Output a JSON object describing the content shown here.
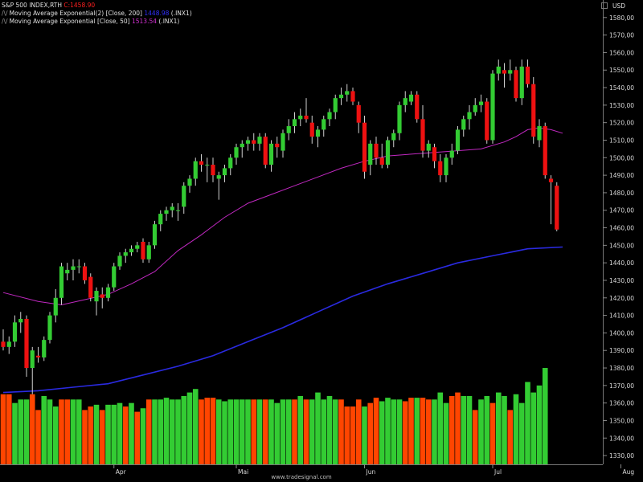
{
  "header": {
    "symbol_label": "S&P 500 INDEX,RTH",
    "close_value": "C:1458.90",
    "indicator_prefix": "/\\/",
    "indicators": [
      {
        "label": "Moving Average Exponential(2) [Close, 200]",
        "value": "1448.98",
        "source": "(.INX1)",
        "color": "#3030ff"
      },
      {
        "label": "Moving Average Exponential [Close, 50]",
        "value": "1513.54",
        "source": "(.INX1)",
        "color": "#d030d0"
      }
    ],
    "currency": "USD"
  },
  "footer": {
    "credit": "www.tradesignal.com"
  },
  "chart_data": {
    "type": "candlestick",
    "x_ticks": [
      {
        "label": "Apr",
        "index": 19
      },
      {
        "label": "Mai",
        "index": 40
      },
      {
        "label": "Jun",
        "index": 62
      },
      {
        "label": "Jul",
        "index": 84
      },
      {
        "label": "Aug",
        "index": 106
      }
    ],
    "ylim": [
      1325,
      1590
    ],
    "y_ticks": [
      1330,
      1340,
      1350,
      1360,
      1370,
      1380,
      1390,
      1400,
      1410,
      1420,
      1430,
      1440,
      1450,
      1460,
      1470,
      1480,
      1490,
      1500,
      1510,
      1520,
      1530,
      1540,
      1550,
      1560,
      1570,
      1580
    ],
    "y_tick_labels": [
      "1330,00",
      "1340,00",
      "1350,00",
      "1360,00",
      "1370,00",
      "1380,00",
      "1390,00",
      "1400,00",
      "1410,00",
      "1420,00",
      "1430,00",
      "1440,00",
      "1450,00",
      "1460,00",
      "1470,00",
      "1480,00",
      "1490,00",
      "1500,00",
      "1510,00",
      "1520,00",
      "1530,00",
      "1540,00",
      "1550,00",
      "1560,00",
      "1570,00",
      "1580,00"
    ],
    "candles": [
      [
        1395,
        1402,
        1390,
        1392
      ],
      [
        1392,
        1398,
        1388,
        1395
      ],
      [
        1395,
        1410,
        1392,
        1406
      ],
      [
        1406,
        1412,
        1400,
        1408
      ],
      [
        1408,
        1410,
        1375,
        1380
      ],
      [
        1380,
        1392,
        1365,
        1390
      ],
      [
        1387,
        1392,
        1383,
        1386
      ],
      [
        1386,
        1398,
        1384,
        1396
      ],
      [
        1396,
        1412,
        1394,
        1410
      ],
      [
        1410,
        1425,
        1406,
        1420
      ],
      [
        1420,
        1440,
        1416,
        1438
      ],
      [
        1434,
        1440,
        1430,
        1436
      ],
      [
        1436,
        1442,
        1430,
        1438
      ],
      [
        1438,
        1442,
        1434,
        1438
      ],
      [
        1438,
        1440,
        1428,
        1430
      ],
      [
        1432,
        1434,
        1418,
        1420
      ],
      [
        1418,
        1426,
        1410,
        1424
      ],
      [
        1422,
        1426,
        1414,
        1420
      ],
      [
        1420,
        1428,
        1418,
        1426
      ],
      [
        1426,
        1440,
        1424,
        1438
      ],
      [
        1438,
        1446,
        1436,
        1444
      ],
      [
        1444,
        1448,
        1440,
        1446
      ],
      [
        1446,
        1450,
        1444,
        1448
      ],
      [
        1448,
        1452,
        1446,
        1450
      ],
      [
        1452,
        1454,
        1440,
        1442
      ],
      [
        1442,
        1452,
        1440,
        1450
      ],
      [
        1450,
        1464,
        1448,
        1462
      ],
      [
        1462,
        1470,
        1458,
        1468
      ],
      [
        1468,
        1472,
        1464,
        1470
      ],
      [
        1470,
        1474,
        1466,
        1472
      ],
      [
        1470,
        1474,
        1464,
        1470
      ],
      [
        1472,
        1486,
        1468,
        1484
      ],
      [
        1484,
        1490,
        1480,
        1488
      ],
      [
        1488,
        1500,
        1484,
        1498
      ],
      [
        1498,
        1502,
        1492,
        1496
      ],
      [
        1496,
        1500,
        1486,
        1496
      ],
      [
        1496,
        1500,
        1486,
        1490
      ],
      [
        1488,
        1492,
        1476,
        1490
      ],
      [
        1490,
        1496,
        1486,
        1494
      ],
      [
        1494,
        1502,
        1490,
        1500
      ],
      [
        1500,
        1508,
        1496,
        1506
      ],
      [
        1506,
        1510,
        1500,
        1508
      ],
      [
        1508,
        1512,
        1504,
        1510
      ],
      [
        1510,
        1514,
        1504,
        1508
      ],
      [
        1508,
        1514,
        1504,
        1512
      ],
      [
        1512,
        1514,
        1494,
        1496
      ],
      [
        1496,
        1510,
        1492,
        1508
      ],
      [
        1508,
        1512,
        1500,
        1506
      ],
      [
        1504,
        1516,
        1500,
        1514
      ],
      [
        1514,
        1522,
        1510,
        1518
      ],
      [
        1518,
        1526,
        1514,
        1522
      ],
      [
        1522,
        1528,
        1518,
        1524
      ],
      [
        1524,
        1534,
        1520,
        1522
      ],
      [
        1520,
        1524,
        1508,
        1512
      ],
      [
        1512,
        1518,
        1506,
        1516
      ],
      [
        1516,
        1524,
        1512,
        1522
      ],
      [
        1522,
        1528,
        1518,
        1526
      ],
      [
        1526,
        1536,
        1522,
        1534
      ],
      [
        1534,
        1540,
        1530,
        1536
      ],
      [
        1536,
        1542,
        1532,
        1538
      ],
      [
        1538,
        1540,
        1530,
        1532
      ],
      [
        1530,
        1532,
        1514,
        1520
      ],
      [
        1520,
        1524,
        1488,
        1492
      ],
      [
        1496,
        1510,
        1490,
        1508
      ],
      [
        1508,
        1512,
        1496,
        1500
      ],
      [
        1500,
        1508,
        1494,
        1496
      ],
      [
        1496,
        1512,
        1494,
        1510
      ],
      [
        1510,
        1516,
        1506,
        1514
      ],
      [
        1514,
        1532,
        1510,
        1530
      ],
      [
        1530,
        1538,
        1526,
        1534
      ],
      [
        1532,
        1538,
        1530,
        1536
      ],
      [
        1536,
        1538,
        1520,
        1522
      ],
      [
        1522,
        1530,
        1500,
        1504
      ],
      [
        1504,
        1510,
        1500,
        1508
      ],
      [
        1506,
        1508,
        1494,
        1498
      ],
      [
        1498,
        1502,
        1486,
        1490
      ],
      [
        1490,
        1502,
        1486,
        1500
      ],
      [
        1500,
        1508,
        1496,
        1504
      ],
      [
        1504,
        1518,
        1502,
        1516
      ],
      [
        1516,
        1524,
        1512,
        1522
      ],
      [
        1522,
        1530,
        1516,
        1526
      ],
      [
        1526,
        1534,
        1524,
        1530
      ],
      [
        1530,
        1536,
        1526,
        1532
      ],
      [
        1532,
        1534,
        1508,
        1510
      ],
      [
        1510,
        1550,
        1508,
        1548
      ],
      [
        1548,
        1556,
        1544,
        1552
      ],
      [
        1550,
        1554,
        1540,
        1548
      ],
      [
        1548,
        1556,
        1544,
        1550
      ],
      [
        1550,
        1552,
        1532,
        1534
      ],
      [
        1534,
        1556,
        1530,
        1552
      ],
      [
        1552,
        1556,
        1540,
        1542
      ],
      [
        1542,
        1546,
        1508,
        1512
      ],
      [
        1510,
        1522,
        1506,
        1518
      ],
      [
        1518,
        1520,
        1488,
        1490
      ],
      [
        1488,
        1490,
        1462,
        1486
      ],
      [
        1484,
        1486,
        1458,
        1459
      ]
    ],
    "volume_ylim": [
      1325,
      1380
    ],
    "volume": [
      1365,
      1365,
      1360,
      1362,
      1362,
      1365,
      1356,
      1364,
      1362,
      1358,
      1362,
      1362,
      1362,
      1362,
      1356,
      1358,
      1359,
      1356,
      1359,
      1359,
      1360,
      1358,
      1360,
      1355,
      1357,
      1362,
      1362,
      1362,
      1363,
      1362,
      1362,
      1364,
      1366,
      1368,
      1362,
      1363,
      1363,
      1362,
      1361,
      1362,
      1362,
      1362,
      1362,
      1362,
      1362,
      1362,
      1362,
      1360,
      1362,
      1362,
      1362,
      1364,
      1362,
      1362,
      1366,
      1362,
      1364,
      1362,
      1362,
      1358,
      1358,
      1362,
      1358,
      1360,
      1363,
      1361,
      1363,
      1362,
      1362,
      1361,
      1363,
      1363,
      1363,
      1362,
      1362,
      1366,
      1360,
      1364,
      1366,
      1364,
      1364,
      1356,
      1362,
      1364,
      1360,
      1366,
      1364,
      1356,
      1365,
      1360,
      1372,
      1366,
      1370,
      1380,
      null,
      null,
      null,
      null
    ],
    "volume_up": [
      false,
      false,
      true,
      true,
      true,
      false,
      false,
      true,
      true,
      true,
      false,
      false,
      true,
      true,
      false,
      false,
      true,
      false,
      true,
      true,
      true,
      false,
      true,
      false,
      true,
      false,
      true,
      true,
      true,
      true,
      true,
      true,
      true,
      true,
      false,
      false,
      false,
      true,
      true,
      true,
      true,
      true,
      true,
      false,
      true,
      false,
      true,
      true,
      true,
      true,
      false,
      true,
      false,
      true,
      true,
      true,
      true,
      true,
      false,
      false,
      false,
      false,
      true,
      false,
      false,
      true,
      true,
      true,
      true,
      false,
      false,
      true,
      false,
      false,
      true,
      true,
      true,
      false,
      false,
      true,
      true,
      false,
      true,
      true,
      false,
      true,
      true,
      false,
      true,
      true,
      true,
      true,
      true,
      true,
      false,
      false,
      false,
      false
    ],
    "series": [
      {
        "name": "Moving Average Exponential(2) [Close, 200]",
        "color": "#2a2ae0",
        "x": [
          0,
          6,
          12,
          18,
          24,
          30,
          36,
          42,
          48,
          54,
          60,
          66,
          72,
          78,
          84,
          90,
          96
        ],
        "y": [
          1366,
          1367,
          1369,
          1371,
          1376,
          1381,
          1387,
          1395,
          1403,
          1412,
          1421,
          1428,
          1434,
          1440,
          1444,
          1448,
          1449
        ]
      },
      {
        "name": "Moving Average Exponential [Close, 50]",
        "color": "#c028c0",
        "x": [
          0,
          6,
          10,
          14,
          18,
          22,
          26,
          30,
          34,
          38,
          42,
          46,
          50,
          54,
          58,
          62,
          66,
          70,
          74,
          78,
          82,
          86,
          88,
          90,
          92,
          94,
          96
        ],
        "y": [
          1423,
          1418,
          1416,
          1419,
          1422,
          1428,
          1435,
          1447,
          1456,
          1466,
          1474,
          1479,
          1484,
          1489,
          1494,
          1498,
          1501,
          1502,
          1503,
          1504,
          1505,
          1509,
          1512,
          1516,
          1517,
          1516,
          1514
        ]
      }
    ]
  }
}
